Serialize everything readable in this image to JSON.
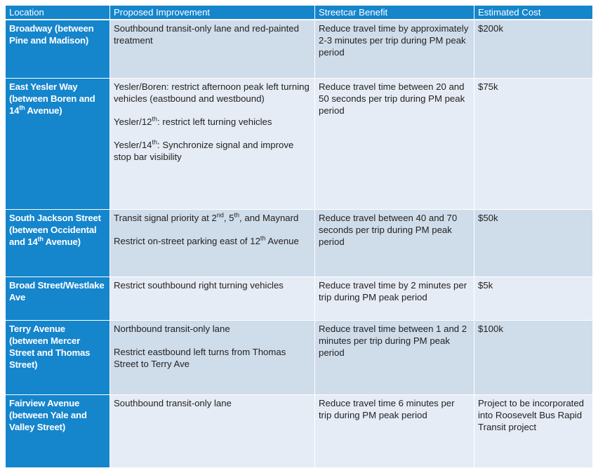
{
  "headers": [
    "Location",
    "Proposed Improvement",
    "Streetcar Benefit",
    "Estimated Cost"
  ],
  "rows": [
    {
      "location": [
        "Broadway (between Pine and Madison)"
      ],
      "improvement": [
        "Southbound transit-only lane and red-painted treatment"
      ],
      "benefit": "Reduce travel time by approximately 2-3 minutes per trip during PM peak period",
      "cost": "$200k"
    },
    {
      "location": [
        "East Yesler Way (between Boren and 14",
        "th",
        " Avenue)"
      ],
      "improvement": [
        [
          "Yesler/Boren: restrict afternoon peak left turning vehicles (eastbound and westbound)"
        ],
        [
          "Yesler/12",
          "th",
          ": restrict left turning vehicles"
        ],
        [
          "Yesler/14",
          "th",
          ": Synchronize signal and improve stop bar visibility"
        ]
      ],
      "benefit": "Reduce travel time between 20 and 50 seconds per trip during PM peak period",
      "cost": "$75k"
    },
    {
      "location": [
        "South Jackson Street (between Occidental and 14",
        "th",
        " Avenue)"
      ],
      "improvement": [
        [
          "Transit signal priority at 2",
          "nd",
          ", 5",
          "th",
          ", and Maynard"
        ],
        [
          "Restrict on-street parking east of 12",
          "th",
          " Avenue"
        ]
      ],
      "benefit": "Reduce travel between 40 and 70 seconds per trip during PM peak period",
      "cost": "$50k"
    },
    {
      "location": [
        "Broad Street/Westlake Ave"
      ],
      "improvement": [
        [
          "Restrict southbound right turning vehicles"
        ]
      ],
      "benefit": "Reduce travel time by 2 minutes per trip during PM peak period",
      "cost": "$5k"
    },
    {
      "location": [
        "Terry Avenue (between Mercer Street and Thomas Street)"
      ],
      "improvement": [
        [
          "Northbound transit-only lane"
        ],
        [
          "Restrict eastbound left turns from Thomas Street to Terry Ave"
        ]
      ],
      "benefit": "Reduce travel time between 1 and 2 minutes per trip during PM peak period",
      "cost": "$100k"
    },
    {
      "location": [
        "Fairview Avenue (between Yale and Valley Street)"
      ],
      "improvement": [
        [
          "Southbound transit-only lane"
        ]
      ],
      "benefit": "Reduce travel time 6 minutes per trip during PM peak period",
      "cost": "Project to be incorporated into Roosevelt Bus Rapid Transit project"
    }
  ]
}
